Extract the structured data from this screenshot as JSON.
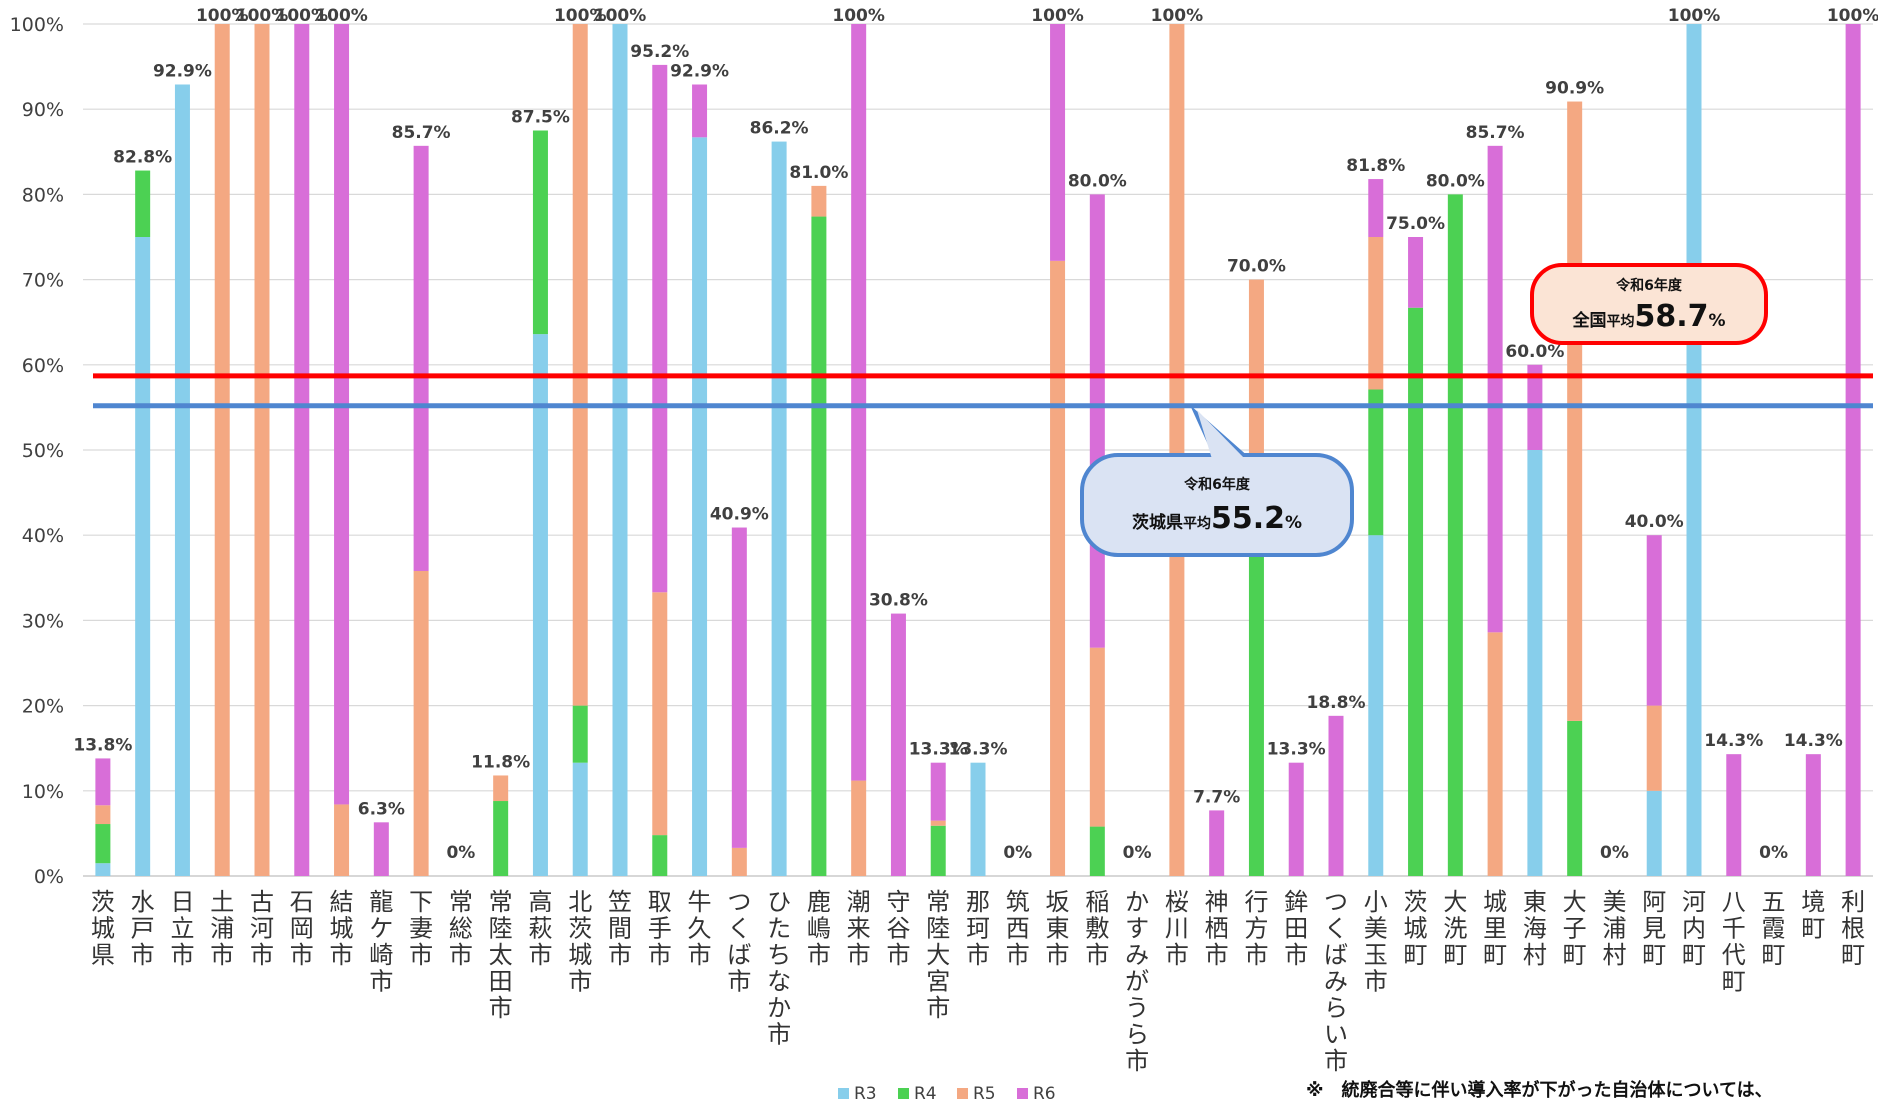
{
  "chart_data": {
    "type": "bar",
    "stacked": true,
    "ylim": [
      0,
      100
    ],
    "yticks": [
      0,
      10,
      20,
      30,
      40,
      50,
      60,
      70,
      80,
      90,
      100
    ],
    "ytick_labels": [
      "0%",
      "10%",
      "20%",
      "30%",
      "40%",
      "50%",
      "60%",
      "70%",
      "80%",
      "90%",
      "100%"
    ],
    "grid": true,
    "legend_position": "bottom",
    "categories": [
      "茨城県",
      "水戸市",
      "日立市",
      "土浦市",
      "古河市",
      "石岡市",
      "結城市",
      "龍ケ崎市",
      "下妻市",
      "常総市",
      "常陸太田市",
      "高萩市",
      "北茨城市",
      "笠間市",
      "取手市",
      "牛久市",
      "つくば市",
      "ひたちなか市",
      "鹿嶋市",
      "潮来市",
      "守谷市",
      "常陸大宮市",
      "那珂市",
      "筑西市",
      "坂東市",
      "稲敷市",
      "かすみがうら市",
      "桜川市",
      "神栖市",
      "行方市",
      "鉾田市",
      "つくばみらい市",
      "小美玉市",
      "茨城町",
      "大洗町",
      "城里町",
      "東海村",
      "大子町",
      "美浦村",
      "阿見町",
      "河内町",
      "八千代町",
      "五霞町",
      "境町",
      "利根町"
    ],
    "series": [
      {
        "name": "R3",
        "color": "#87ceeb",
        "values": [
          1.5,
          75,
          92.9,
          0,
          0,
          0,
          0,
          0,
          0,
          0,
          0,
          63.6,
          13.3,
          100,
          0,
          86.7,
          0,
          86.2,
          0,
          0,
          0,
          0,
          13.3,
          0,
          0,
          0,
          0,
          0,
          0,
          0,
          0,
          0,
          40,
          0,
          0,
          0,
          50,
          0,
          0,
          10,
          100,
          0,
          0,
          0,
          0
        ]
      },
      {
        "name": "R4",
        "color": "#4cd153",
        "values": [
          4.6,
          7.8,
          0,
          0,
          0,
          0,
          0,
          0,
          0,
          0,
          8.8,
          23.9,
          6.7,
          0,
          4.8,
          0,
          0,
          0,
          77.4,
          0,
          0,
          5.9,
          0,
          0,
          0,
          5.8,
          0,
          0,
          0,
          38,
          0,
          0,
          17.1,
          66.7,
          80,
          0,
          0,
          18.2,
          0,
          0,
          0,
          0,
          0,
          0,
          0
        ]
      },
      {
        "name": "R5",
        "color": "#f4a882",
        "values": [
          2.2,
          0,
          0,
          100,
          100,
          0,
          8.4,
          0,
          35.8,
          0,
          3,
          0,
          80,
          0,
          28.5,
          0,
          3.3,
          0,
          3.6,
          11.2,
          0,
          0.6,
          0,
          0,
          72.2,
          21,
          0,
          100,
          0,
          32,
          0,
          0,
          17.9,
          0,
          0,
          28.6,
          0,
          72.7,
          0,
          10,
          0,
          0,
          0,
          0,
          0
        ]
      },
      {
        "name": "R6",
        "color": "#d86ed8",
        "values": [
          5.5,
          0,
          0,
          0,
          0,
          100,
          91.6,
          6.3,
          49.9,
          0,
          0,
          0,
          0,
          0,
          61.9,
          6.2,
          37.6,
          0,
          0,
          88.8,
          30.8,
          6.8,
          0,
          0,
          27.8,
          53.2,
          0,
          0,
          7.7,
          0,
          13.3,
          18.8,
          6.8,
          8.3,
          0,
          57.1,
          10,
          0,
          0,
          20,
          0,
          14.3,
          0,
          14.3,
          100
        ]
      }
    ],
    "total_labels": [
      "13.8%",
      "82.8%",
      "92.9%",
      "100%",
      "100%",
      "100%",
      "100%",
      "6.3%",
      "85.7%",
      "0%",
      "11.8%",
      "87.5%",
      "100%",
      "100%",
      "95.2%",
      "92.9%",
      "40.9%",
      "86.2%",
      "81.0%",
      "100%",
      "30.8%",
      "13.3%",
      "13.3%",
      "0%",
      "100%",
      "80.0%",
      "0%",
      "100%",
      "7.7%",
      "70.0%",
      "13.3%",
      "18.8%",
      "81.8%",
      "75.0%",
      "80.0%",
      "85.7%",
      "60.0%",
      "90.9%",
      "0%",
      "40.0%",
      "100%",
      "14.3%",
      "0%",
      "14.3%",
      "100%"
    ],
    "reference_lines": [
      {
        "value": 58.7,
        "color": "#ff0000",
        "callout_small": "令和6年度",
        "callout_prefix": "全国平均",
        "callout_value": "58.7",
        "callout_unit": "%"
      },
      {
        "value": 55.2,
        "color": "#4f86d0",
        "callout_small": "令和6年度",
        "callout_prefix": "茨城県",
        "callout_prefix_small": "平均",
        "callout_value": "55.2",
        "callout_unit": "%"
      }
    ],
    "national_prefix_main": "全国",
    "national_prefix_small": "平均",
    "footnote": "※　統廃合等に伴い導入率が下がった自治体については、"
  }
}
